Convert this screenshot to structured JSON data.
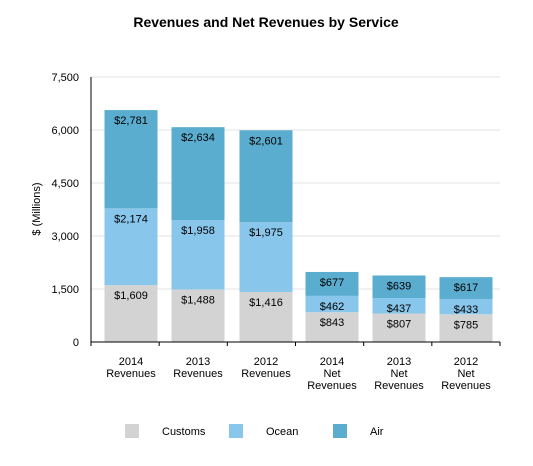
{
  "chart_data": {
    "type": "bar",
    "stacked": true,
    "title": "Revenues and Net Revenues by Service",
    "ylabel": "$ (Millions)",
    "ylim": [
      0,
      7500
    ],
    "yticks": [
      0,
      1500,
      3000,
      4500,
      6000,
      7500
    ],
    "ytick_labels": [
      "0",
      "1,500",
      "3,000",
      "4,500",
      "6,000",
      "7,500"
    ],
    "grid": true,
    "legend_position": "bottom",
    "categories": [
      [
        "2014",
        "Revenues"
      ],
      [
        "2013",
        "Revenues"
      ],
      [
        "2012",
        "Revenues"
      ],
      [
        "2014",
        "Net",
        "Revenues"
      ],
      [
        "2013",
        "Net",
        "Revenues"
      ],
      [
        "2012",
        "Net",
        "Revenues"
      ]
    ],
    "series": [
      {
        "name": "Customs",
        "color": "#d3d3d3",
        "values": [
          1609,
          1488,
          1416,
          843,
          807,
          785
        ],
        "labels": [
          "$1,609",
          "$1,488",
          "$1,416",
          "$843",
          "$807",
          "$785"
        ]
      },
      {
        "name": "Ocean",
        "color": "#88c6ec",
        "values": [
          2174,
          1958,
          1975,
          462,
          437,
          433
        ],
        "labels": [
          "$2,174",
          "$1,958",
          "$1,975",
          "$462",
          "$437",
          "$433"
        ]
      },
      {
        "name": "Air",
        "color": "#5aadcf",
        "values": [
          2781,
          2634,
          2601,
          677,
          639,
          617
        ],
        "labels": [
          "$2,781",
          "$2,634",
          "$2,601",
          "$677",
          "$639",
          "$617"
        ]
      }
    ]
  }
}
